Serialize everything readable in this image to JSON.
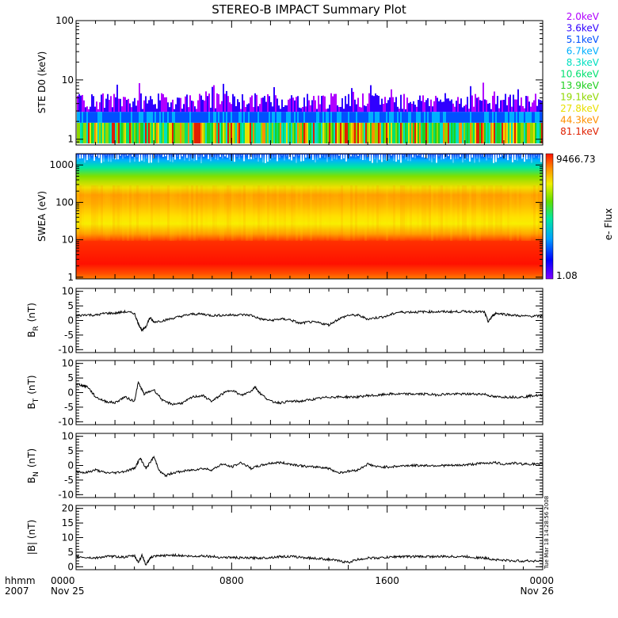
{
  "title": "STEREO-B IMPACT Summary Plot",
  "timestamp": "Tue Mar 18 14:28:56 2008",
  "x_axis": {
    "row1_label": "hhmm",
    "row2_label": "2007",
    "ticks": [
      {
        "hour": 0,
        "time": "0000",
        "date": "Nov 25"
      },
      {
        "hour": 8,
        "time": "0800",
        "date": ""
      },
      {
        "hour": 16,
        "time": "1600",
        "date": ""
      },
      {
        "hour": 24,
        "time": "0000",
        "date": "Nov 26"
      }
    ],
    "range_hours": [
      0,
      24
    ]
  },
  "chart_data": [
    {
      "type": "line",
      "panel": "ste",
      "ylabel": "STE D0 (keV)",
      "yscale": "log",
      "ylim": [
        0.8,
        100
      ],
      "yticks": [
        "1",
        "10",
        "100"
      ],
      "legend_placement": "right",
      "series": [
        {
          "name": "2.0keV",
          "color": "#b000ff"
        },
        {
          "name": "3.6keV",
          "color": "#3000ff"
        },
        {
          "name": "5.1keV",
          "color": "#0050ff"
        },
        {
          "name": "6.7keV",
          "color": "#00b0ff"
        },
        {
          "name": "8.3keV",
          "color": "#00e0c0"
        },
        {
          "name": "10.6keV",
          "color": "#00e070"
        },
        {
          "name": "13.9keV",
          "color": "#20d020"
        },
        {
          "name": "19.1keV",
          "color": "#90d800"
        },
        {
          "name": "27.8keV",
          "color": "#e8e000"
        },
        {
          "name": "44.3keV",
          "color": "#ff9000"
        },
        {
          "name": "81.1keV",
          "color": "#e02000"
        }
      ]
    },
    {
      "type": "heatmap",
      "panel": "swea",
      "ylabel": "SWEA (eV)",
      "yscale": "log",
      "ylim": [
        0.9,
        2000
      ],
      "yticks": [
        "1",
        "10",
        "100",
        "1000"
      ],
      "colorbar": {
        "label": "e- Flux",
        "max": "9466.73",
        "min": "1.08"
      }
    },
    {
      "type": "line",
      "panel": "br",
      "ylabel_main": "B",
      "ylabel_sub": "R",
      "ylabel_unit": "(nT)",
      "ylim": [
        -11,
        11
      ],
      "yticks": [
        "10",
        "5",
        "0",
        "-5",
        "-10"
      ],
      "x": [
        0,
        0.5,
        1,
        1.5,
        2,
        2.5,
        3,
        3.2,
        3.4,
        3.6,
        3.8,
        4,
        4.5,
        5,
        5.5,
        6,
        6.5,
        7,
        7.5,
        8,
        8.5,
        9,
        9.5,
        10,
        10.5,
        11,
        11.5,
        12,
        12.5,
        13,
        13.5,
        14,
        14.5,
        15,
        15.5,
        16,
        16.5,
        17,
        17.5,
        18,
        18.5,
        19,
        19.5,
        20,
        20.5,
        21,
        21.2,
        21.4,
        21.6,
        22,
        22.5,
        23,
        23.5,
        24
      ],
      "y": [
        1.5,
        2,
        1.8,
        2.5,
        2.5,
        3,
        2.5,
        -1,
        -3.5,
        -2,
        1,
        -0.5,
        0,
        0.8,
        1.6,
        2.2,
        2.2,
        1.7,
        1.8,
        1.9,
        2,
        1.8,
        0.5,
        0,
        0.5,
        0.3,
        -1,
        -0.5,
        -0.8,
        -1.5,
        0.5,
        1.8,
        1.8,
        0.5,
        1,
        1.5,
        2.8,
        2.9,
        2.9,
        3,
        3,
        3,
        3,
        3.1,
        3,
        2.9,
        -0.5,
        1.5,
        2.5,
        2.2,
        1.8,
        1.5,
        1.5,
        1.5
      ]
    },
    {
      "type": "line",
      "panel": "bt",
      "ylabel_main": "B",
      "ylabel_sub": "T",
      "ylabel_unit": "(nT)",
      "ylim": [
        -11,
        11
      ],
      "yticks": [
        "10",
        "5",
        "0",
        "-5",
        "-10"
      ],
      "x": [
        0,
        0.3,
        0.6,
        1,
        1.5,
        2,
        2.5,
        3,
        3.2,
        3.5,
        4,
        4.5,
        5,
        5.5,
        6,
        6.5,
        7,
        7.5,
        8,
        8.5,
        9,
        9.2,
        9.5,
        10,
        10.5,
        11,
        11.5,
        12,
        12.5,
        13,
        13.5,
        14,
        14.5,
        15,
        15.5,
        16,
        16.5,
        17,
        17.5,
        18,
        18.5,
        19,
        19.5,
        20,
        20.5,
        21,
        21.5,
        22,
        22.5,
        23,
        23.5,
        24
      ],
      "y": [
        3,
        2.5,
        2,
        -1.5,
        -3,
        -3.5,
        -1.5,
        -3,
        3.5,
        -0.5,
        1,
        -3,
        -4,
        -3.5,
        -1.5,
        -1,
        -3,
        -0.5,
        1,
        -1,
        0.5,
        2,
        -0.5,
        -3,
        -3.5,
        -3,
        -3,
        -2.5,
        -2,
        -1.5,
        -1.5,
        -1.5,
        -1.5,
        -1,
        -1,
        -0.5,
        -0.5,
        -0.5,
        -0.5,
        -0.5,
        -0.8,
        -0.5,
        -0.5,
        -0.5,
        -0.5,
        -0.5,
        -1.5,
        -1.5,
        -1.5,
        -1.5,
        -1,
        -1
      ]
    },
    {
      "type": "line",
      "panel": "bn",
      "ylabel_main": "B",
      "ylabel_sub": "N",
      "ylabel_unit": "(nT)",
      "ylim": [
        -11,
        11
      ],
      "yticks": [
        "10",
        "5",
        "0",
        "-5",
        "-10"
      ],
      "x": [
        0,
        0.5,
        1,
        1.5,
        2,
        2.5,
        3,
        3.3,
        3.6,
        4,
        4.3,
        4.6,
        5,
        5.5,
        6,
        6.5,
        7,
        7.5,
        8,
        8.5,
        9,
        9.5,
        10,
        10.5,
        11,
        11.5,
        12,
        12.5,
        13,
        13.5,
        14,
        14.5,
        15,
        15.5,
        16,
        16.5,
        17,
        17.5,
        18,
        18.5,
        19,
        19.5,
        20,
        20.5,
        21,
        21.5,
        22,
        22.5,
        23,
        23.5,
        24
      ],
      "y": [
        -2,
        -2.5,
        -1.5,
        -2.5,
        -2.5,
        -2,
        -1,
        2.5,
        -1,
        3,
        -2,
        -3.5,
        -2.5,
        -2,
        -1.5,
        -1,
        -1.5,
        0.5,
        -0.5,
        1,
        -1,
        0,
        0.8,
        1,
        0.5,
        0,
        -0.5,
        -0.5,
        -1,
        -2.5,
        -2,
        -1.5,
        0.5,
        -0.5,
        -0.5,
        -0.3,
        0,
        0,
        0,
        0,
        0,
        0,
        0.2,
        0.5,
        0.8,
        1,
        0.5,
        0.8,
        0.5,
        0.5,
        0.3
      ]
    },
    {
      "type": "line",
      "panel": "bmag",
      "ylabel": "|B| (nT)",
      "ylim": [
        -1,
        21
      ],
      "yticks": [
        "20",
        "15",
        "10",
        "5",
        "0"
      ],
      "x": [
        0,
        0.5,
        1,
        1.5,
        2,
        2.5,
        3,
        3.2,
        3.4,
        3.6,
        3.8,
        4,
        4.5,
        5,
        5.5,
        6,
        6.5,
        7,
        7.5,
        8,
        8.5,
        9,
        9.5,
        10,
        10.5,
        11,
        11.5,
        12,
        12.5,
        13,
        13.5,
        14,
        14.5,
        15,
        15.5,
        16,
        16.5,
        17,
        17.5,
        18,
        18.5,
        19,
        19.5,
        20,
        20.5,
        21,
        21.5,
        22,
        22.5,
        23,
        23.5,
        24
      ],
      "y": [
        3.5,
        3.2,
        3,
        3.5,
        3.5,
        3.3,
        3.8,
        1.5,
        4,
        0.5,
        3,
        3.5,
        3.8,
        4,
        3.8,
        3.5,
        3.8,
        3.5,
        3.2,
        3.2,
        3,
        3,
        3,
        3.2,
        3.5,
        3.5,
        3.3,
        3,
        2.8,
        2.5,
        2,
        1.5,
        2.5,
        3,
        3,
        3.2,
        3.5,
        3.5,
        3.5,
        3.5,
        3.5,
        3.5,
        3.5,
        3.5,
        3.2,
        3,
        2.5,
        2.2,
        2,
        2,
        2,
        2
      ]
    }
  ]
}
